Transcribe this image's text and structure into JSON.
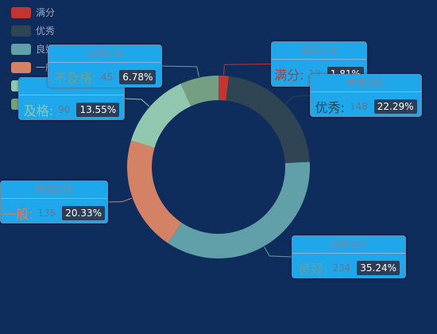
{
  "chart_data": {
    "type": "pie",
    "title": "",
    "slices": [
      {
        "name": "满分",
        "value": 12,
        "percent": "1.81%",
        "color": "#c23531"
      },
      {
        "name": "优秀",
        "value": 148,
        "percent": "22.29%",
        "color": "#2f4554"
      },
      {
        "name": "良好",
        "value": 234,
        "percent": "35.24%",
        "color": "#61a0a8"
      },
      {
        "name": "一般",
        "value": 135,
        "percent": "20.33%",
        "color": "#d48265"
      },
      {
        "name": "及格",
        "value": 90,
        "percent": "13.55%",
        "color": "#91c7ae"
      },
      {
        "name": "不及格",
        "value": 45,
        "percent": "6.78%",
        "color": "#749f83"
      }
    ],
    "legend_position": "top-left",
    "label_title": "成绩占比",
    "label_separator": ":"
  },
  "colors": {
    "background": "#0e2c5c",
    "callout_background": "#1ea7ea",
    "percent_badge": "#2c3d57"
  }
}
